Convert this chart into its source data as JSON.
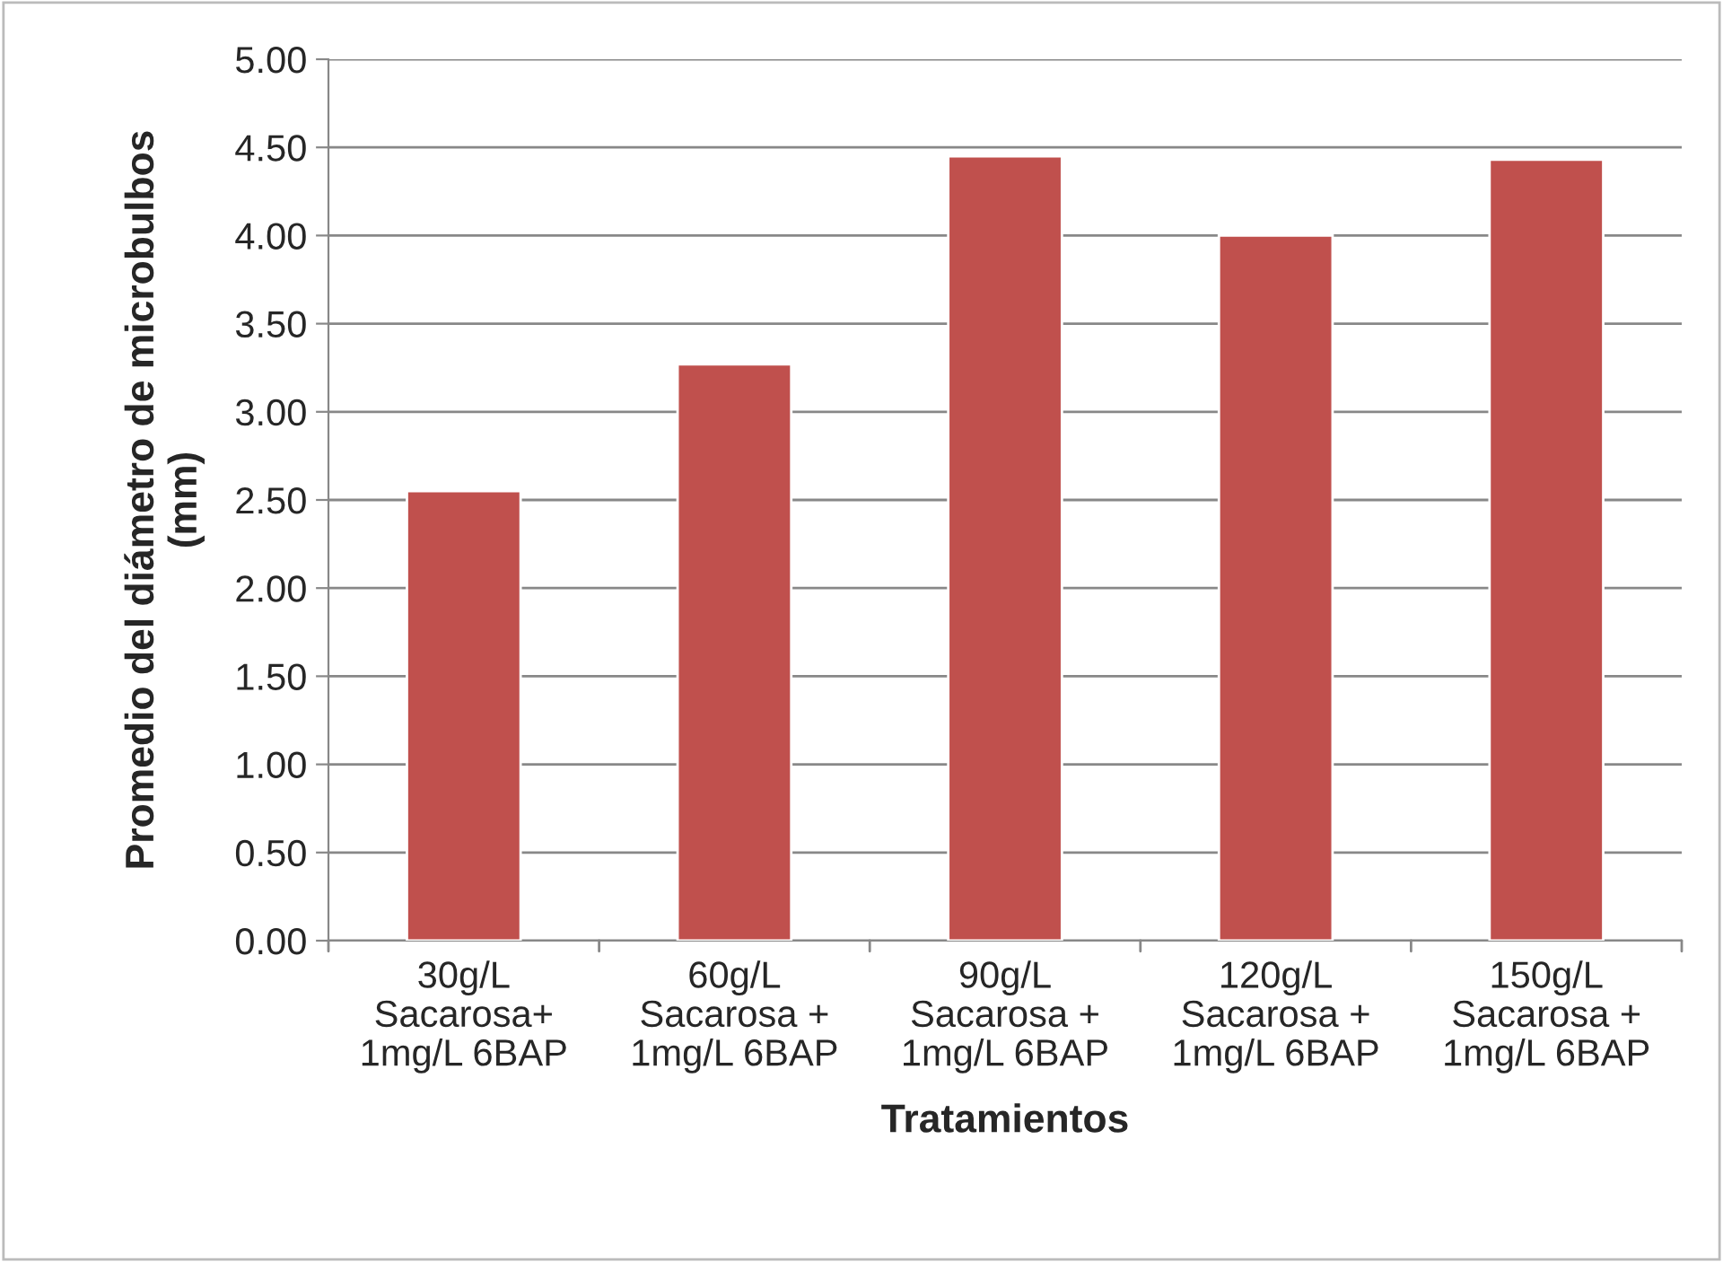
{
  "chart_data": {
    "type": "bar",
    "categories": [
      "30g/L\nSacarosa+\n1mg/L 6BAP",
      "60g/L\nSacarosa +\n1mg/L 6BAP",
      "90g/L\nSacarosa +\n1mg/L 6BAP",
      "120g/L\nSacarosa +\n1mg/L 6BAP",
      "150g/L\nSacarosa +\n1mg/L 6BAP"
    ],
    "values": [
      2.55,
      3.27,
      4.45,
      4.0,
      4.43
    ],
    "color": "#c0504d",
    "xlabel": "Tratamientos",
    "ylabel": "Promedio del diámetro de microbulbos\n(mm)",
    "ylim": [
      0,
      5
    ],
    "yticks": [
      {
        "value": 0,
        "label": "0.00"
      },
      {
        "value": 0.5,
        "label": "0.50"
      },
      {
        "value": 1,
        "label": "1.00"
      },
      {
        "value": 1.5,
        "label": "1.50"
      },
      {
        "value": 2,
        "label": "2.00"
      },
      {
        "value": 2.5,
        "label": "2.50"
      },
      {
        "value": 3,
        "label": "3.00"
      },
      {
        "value": 3.5,
        "label": "3.50"
      },
      {
        "value": 4,
        "label": "4.00"
      },
      {
        "value": 4.5,
        "label": "4.50"
      },
      {
        "value": 5,
        "label": "5.00"
      }
    ],
    "grid": "y",
    "legend": false
  }
}
